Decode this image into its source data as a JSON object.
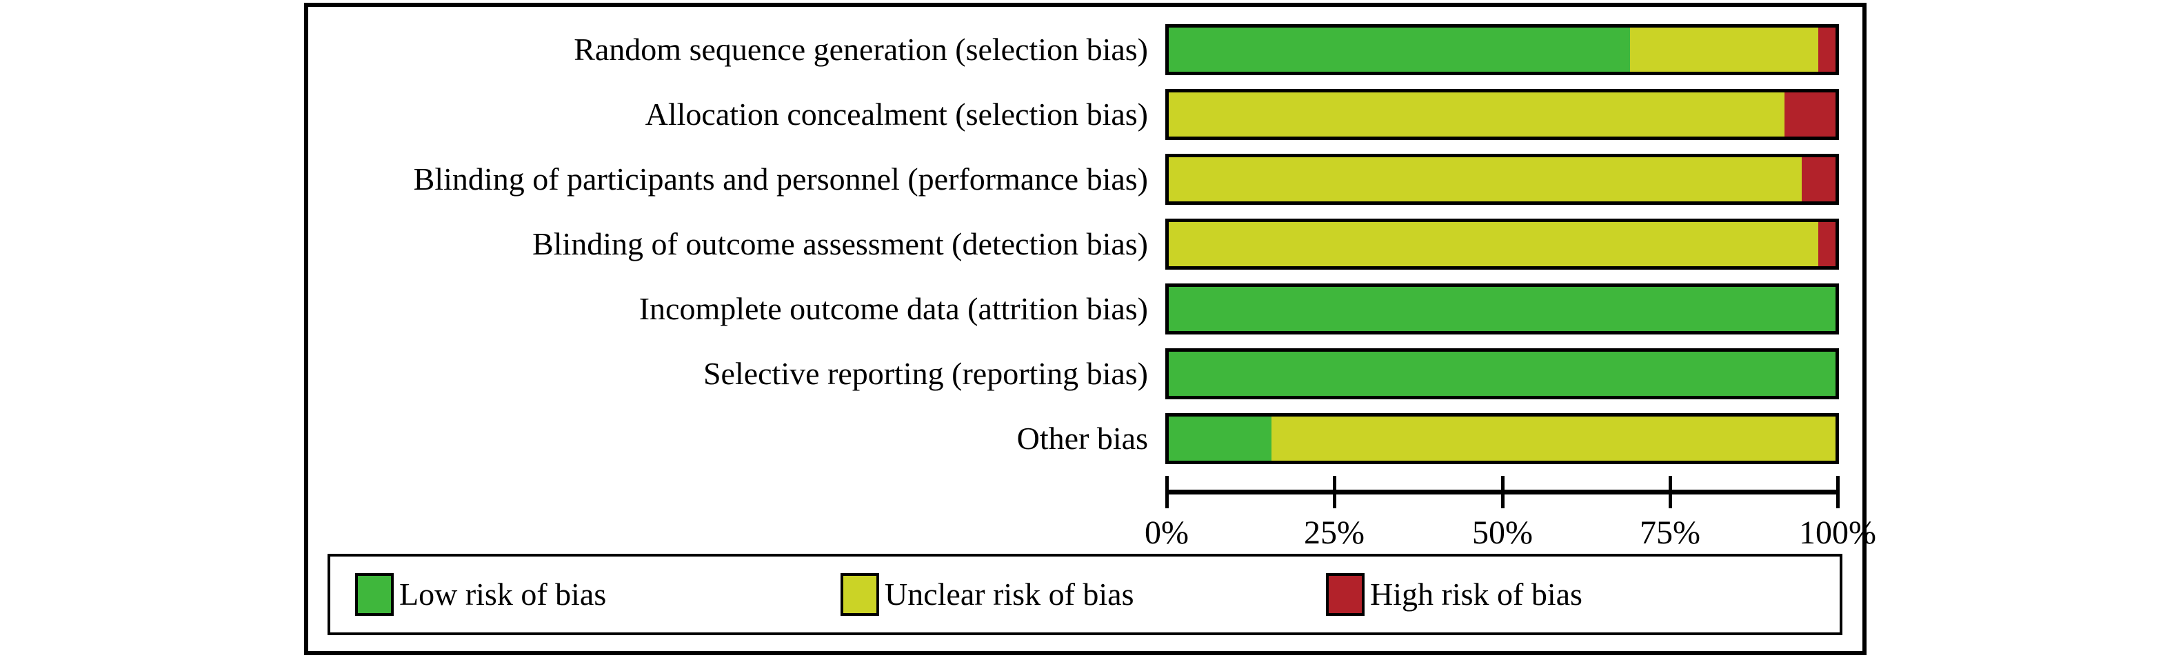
{
  "figure": {
    "background": "#ffffff",
    "border_color": "#000000"
  },
  "chart_data": {
    "type": "bar",
    "orientation": "horizontal_stacked",
    "title": "",
    "xlabel": "",
    "ylabel": "",
    "grid": false,
    "categories": [
      "Random sequence generation (selection bias)",
      "Allocation concealment (selection bias)",
      "Blinding of participants and personnel (performance bias)",
      "Blinding of outcome assessment (detection bias)",
      "Incomplete outcome data (attrition bias)",
      "Selective reporting (reporting bias)",
      "Other bias"
    ],
    "series": [
      {
        "name": "Low risk of bias",
        "color": "#3fb73c",
        "values": [
          69.2,
          0,
          0,
          0,
          100,
          100,
          15.4
        ]
      },
      {
        "name": "Unclear risk of bias",
        "color": "#cbd326",
        "values": [
          28.2,
          92.3,
          94.9,
          97.4,
          0,
          0,
          84.6
        ]
      },
      {
        "name": "High risk of bias",
        "color": "#b2222a",
        "values": [
          2.6,
          7.7,
          5.1,
          2.6,
          0,
          0,
          0
        ]
      }
    ],
    "x_axis": {
      "range": [
        0,
        100
      ],
      "tick_labels": [
        "0%",
        "25%",
        "50%",
        "75%",
        "100%"
      ],
      "unit": "percent"
    },
    "legend": {
      "position": "bottom",
      "items": [
        {
          "label": "Low risk of bias",
          "color": "#3fb73c"
        },
        {
          "label": "Unclear risk of bias",
          "color": "#cbd326"
        },
        {
          "label": "High risk of bias",
          "color": "#b2222a"
        }
      ]
    }
  }
}
